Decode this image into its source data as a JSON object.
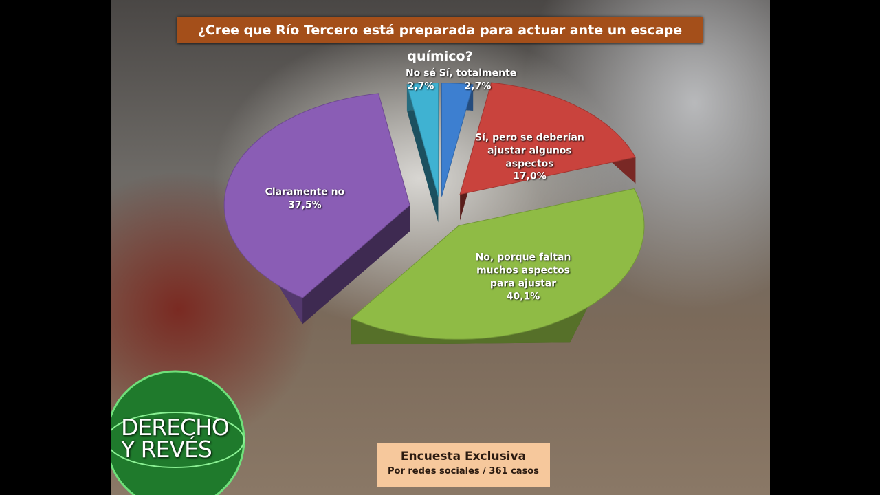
{
  "chart_data": {
    "type": "pie",
    "title": "¿Cree que Río Tercero está preparada para actuar ante un escape químico?",
    "categories": [
      "Sí, totalmente",
      "Sí, pero se deberían ajustar algunos aspectos",
      "No, porque faltan muchos aspectos para ajustar",
      "Claramente no",
      "No sé"
    ],
    "values": [
      2.7,
      17.0,
      40.1,
      37.5,
      2.7
    ],
    "value_labels": [
      "2,7%",
      "17,0%",
      "40,1%",
      "37,5%",
      "2,7%"
    ],
    "colors": [
      "#3d7fd0",
      "#c9433d",
      "#8fbb45",
      "#8a5db5",
      "#3fb2d2"
    ],
    "annotations": [
      "Encuesta Exclusiva",
      "Por redes sociales / 361 casos"
    ]
  },
  "logo": [
    "DERECHO",
    "Y REVÉS"
  ]
}
